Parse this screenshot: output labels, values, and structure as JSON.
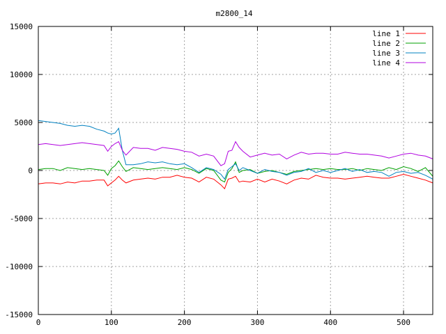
{
  "chart_data": {
    "type": "line",
    "title": "m2800_14",
    "xlabel": "",
    "ylabel": "",
    "xlim": [
      0,
      540
    ],
    "ylim": [
      -15000,
      15000
    ],
    "xticks": [
      0,
      100,
      200,
      300,
      400,
      500
    ],
    "yticks": [
      -15000,
      -10000,
      -5000,
      0,
      5000,
      10000,
      15000
    ],
    "grid": true,
    "legend_position": "top-right",
    "x": [
      0,
      10,
      20,
      30,
      40,
      50,
      60,
      70,
      80,
      90,
      95,
      100,
      105,
      110,
      115,
      120,
      130,
      140,
      150,
      160,
      170,
      180,
      190,
      200,
      210,
      220,
      230,
      240,
      250,
      255,
      260,
      265,
      270,
      275,
      280,
      290,
      300,
      310,
      320,
      330,
      340,
      350,
      360,
      370,
      380,
      390,
      400,
      410,
      420,
      430,
      440,
      450,
      460,
      470,
      480,
      490,
      500,
      510,
      520,
      530,
      540
    ],
    "series": [
      {
        "name": "line 1",
        "color": "#ff0000",
        "values": [
          -1400,
          -1300,
          -1300,
          -1400,
          -1200,
          -1300,
          -1100,
          -1100,
          -1000,
          -1000,
          -1600,
          -1300,
          -1000,
          -600,
          -1000,
          -1300,
          -1000,
          -900,
          -800,
          -900,
          -700,
          -700,
          -500,
          -700,
          -800,
          -1200,
          -700,
          -900,
          -1500,
          -1900,
          -900,
          -800,
          -600,
          -1200,
          -1100,
          -1200,
          -900,
          -1200,
          -900,
          -1100,
          -1400,
          -1000,
          -800,
          -900,
          -500,
          -700,
          -800,
          -800,
          -900,
          -800,
          -700,
          -600,
          -700,
          -800,
          -800,
          -600,
          -400,
          -600,
          -800,
          -1000,
          -1300
        ]
      },
      {
        "name": "line 2",
        "color": "#00a000",
        "values": [
          100,
          200,
          200,
          0,
          300,
          200,
          100,
          200,
          100,
          0,
          -500,
          200,
          500,
          1000,
          400,
          -100,
          300,
          200,
          100,
          200,
          300,
          200,
          100,
          300,
          100,
          -300,
          200,
          0,
          -1000,
          -1200,
          -200,
          200,
          900,
          -200,
          0,
          100,
          -300,
          -100,
          0,
          -200,
          -400,
          -100,
          0,
          100,
          200,
          100,
          200,
          100,
          100,
          200,
          0,
          200,
          100,
          0,
          300,
          100,
          400,
          200,
          -100,
          300,
          -600
        ]
      },
      {
        "name": "line 3",
        "color": "#0080c0",
        "values": [
          5200,
          5100,
          5000,
          4900,
          4700,
          4600,
          4700,
          4600,
          4300,
          4100,
          3900,
          3800,
          3900,
          4400,
          2100,
          600,
          600,
          700,
          900,
          800,
          900,
          700,
          600,
          700,
          300,
          -200,
          300,
          100,
          -400,
          -900,
          100,
          400,
          700,
          0,
          300,
          0,
          -300,
          100,
          -100,
          -200,
          -500,
          -200,
          -100,
          200,
          -200,
          0,
          -200,
          0,
          200,
          -100,
          100,
          -200,
          -100,
          -200,
          -600,
          -200,
          -100,
          -300,
          -200,
          -500,
          -900
        ]
      },
      {
        "name": "line 4",
        "color": "#b000e0",
        "values": [
          2700,
          2800,
          2700,
          2600,
          2700,
          2800,
          2900,
          2800,
          2700,
          2600,
          2000,
          2500,
          2800,
          3000,
          2100,
          1600,
          2400,
          2300,
          2300,
          2100,
          2400,
          2300,
          2200,
          2000,
          1900,
          1500,
          1700,
          1500,
          500,
          700,
          2000,
          2100,
          3000,
          2400,
          2000,
          1400,
          1600,
          1800,
          1600,
          1700,
          1200,
          1600,
          1900,
          1700,
          1800,
          1800,
          1700,
          1700,
          1900,
          1800,
          1700,
          1700,
          1600,
          1500,
          1300,
          1500,
          1700,
          1800,
          1600,
          1500,
          1200
        ]
      }
    ]
  }
}
